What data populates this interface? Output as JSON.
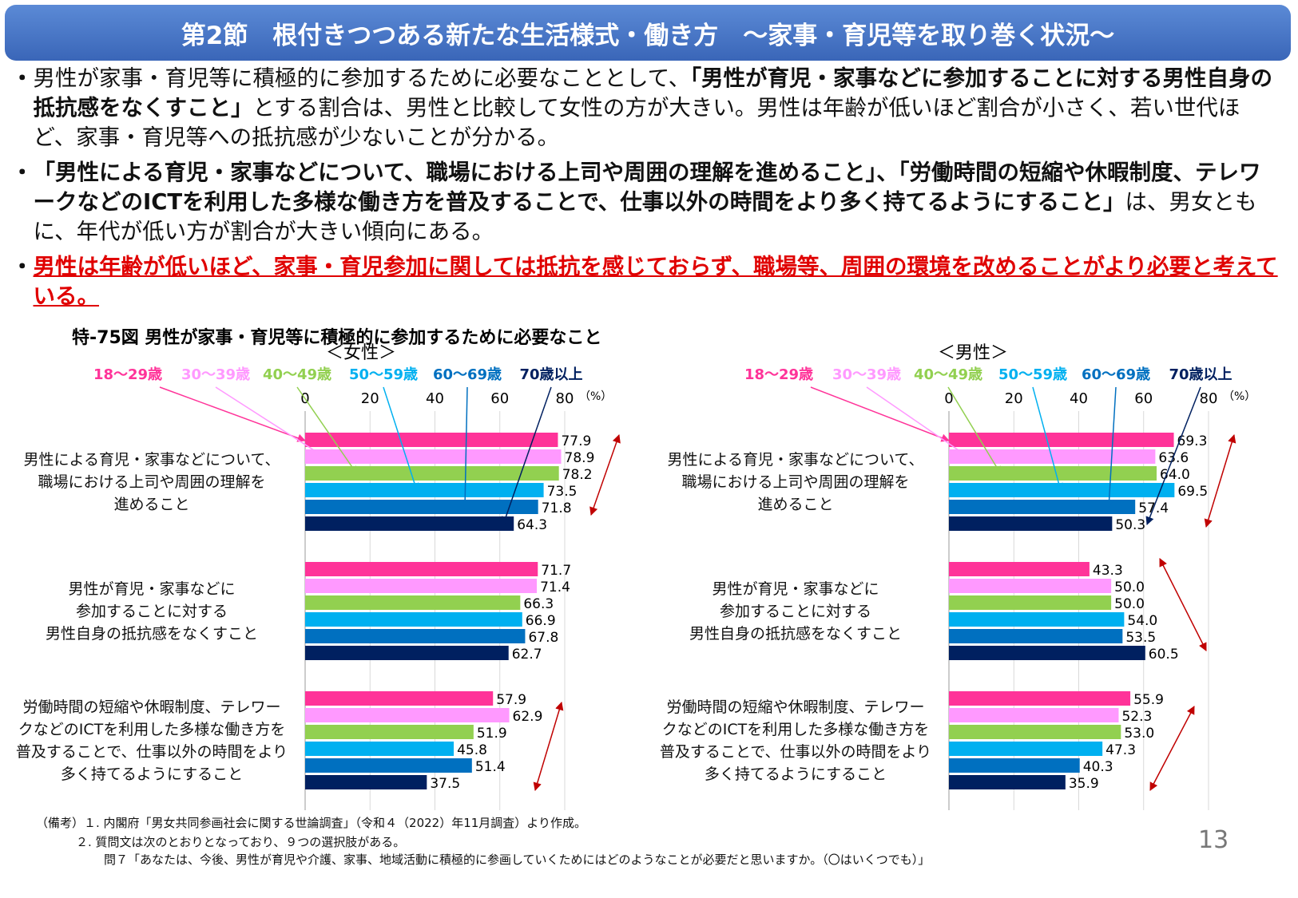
{
  "header": {
    "title": "第2節　根付きつつある新たな生活様式・働き方　～家事・育児等を取り巻く状況～"
  },
  "bullets": [
    {
      "marker": "・",
      "segments": [
        {
          "text": "男性が家事・育児等に積極的に参加するために必要なこととして、",
          "emphasis": "none"
        },
        {
          "text": "「男性が育児・家事などに参加することに対する男性自身の抵抗感をなくすこと」",
          "emphasis": "bold"
        },
        {
          "text": "とする割合は、男性と比較して女性の方が大きい。男性は年齢が低いほど割合が小さく、若い世代ほど、家事・育児等への抵抗感が少ないことが分かる。",
          "emphasis": "none"
        }
      ]
    },
    {
      "marker": "・",
      "segments": [
        {
          "text": "「男性による育児・家事などについて、職場における上司や周囲の理解を進めること」、「労働時間の短縮や休暇制度、テレワークなどのICTを利用した多様な働き方を普及することで、仕事以外の時間をより多く持てるようにすること」",
          "emphasis": "bold"
        },
        {
          "text": "は、男女ともに、年代が低い方が割合が大きい傾向にある。",
          "emphasis": "none"
        }
      ]
    },
    {
      "marker": "・",
      "segments": [
        {
          "text": "男性は年齢が低いほど、家事・育児参加に関しては抵抗を感じておらず、職場等、周囲の環境を改めることがより必要と考えている。",
          "emphasis": "red"
        }
      ]
    }
  ],
  "figure_title": "特-75図 男性が家事・育児等に積極的に参加するために必要なこと",
  "chart_data": [
    {
      "type": "bar",
      "orientation": "horizontal",
      "title": "＜女性＞",
      "unit": "（%）",
      "categories": [
        "男性による育児・家事などについて、\n職場における上司や周囲の理解を\n進めること",
        "男性が育児・家事などに\n参加することに対する\n男性自身の抵抗感をなくすこと",
        "労働時間の短縮や休暇制度、テレワー\nクなどのICTを利用した多様な働き方を\n普及することで、仕事以外の時間をより\n多く持てるようにすること"
      ],
      "series": [
        {
          "name": "18～29歳",
          "color": "#ff3399",
          "values": [
            77.9,
            71.7,
            57.9
          ],
          "value_labels": [
            "77.9",
            "71.7",
            "57.9"
          ]
        },
        {
          "name": "30～39歳",
          "color": "#ff99ff",
          "values": [
            78.9,
            71.4,
            62.9
          ],
          "value_labels": [
            "78.9",
            "71.4",
            "62.9"
          ]
        },
        {
          "name": "40～49歳",
          "color": "#92d050",
          "values": [
            78.2,
            66.3,
            51.9
          ],
          "value_labels": [
            "78.2",
            "66.3",
            "51.9"
          ]
        },
        {
          "name": "50～59歳",
          "color": "#00b0f0",
          "values": [
            73.5,
            66.9,
            45.8
          ],
          "value_labels": [
            "73.5",
            "66.9",
            "45.8"
          ]
        },
        {
          "name": "60～69歳",
          "color": "#0070c0",
          "values": [
            71.8,
            67.8,
            51.4
          ],
          "value_labels": [
            "71.8",
            "67.8",
            "51.4"
          ]
        },
        {
          "name": "70歳以上",
          "color": "#002060",
          "values": [
            64.3,
            62.7,
            37.5
          ],
          "value_labels": [
            "64.3",
            "62.7",
            "37.5"
          ]
        }
      ],
      "xlim": [
        0,
        80
      ],
      "xticks": [
        0,
        20,
        40,
        60,
        80
      ],
      "grid": true
    },
    {
      "type": "bar",
      "orientation": "horizontal",
      "title": "＜男性＞",
      "unit": "（%）",
      "categories": [
        "男性による育児・家事などについて、\n職場における上司や周囲の理解を\n進めること",
        "男性が育児・家事などに\n参加することに対する\n男性自身の抵抗感をなくすこと",
        "労働時間の短縮や休暇制度、テレワー\nクなどのICTを利用した多様な働き方を\n普及することで、仕事以外の時間をより\n多く持てるようにすること"
      ],
      "series": [
        {
          "name": "18～29歳",
          "color": "#ff3399",
          "values": [
            69.3,
            43.3,
            55.9
          ],
          "value_labels": [
            "69.3",
            "43.3",
            "55.9"
          ]
        },
        {
          "name": "30～39歳",
          "color": "#ff99ff",
          "values": [
            63.6,
            50.0,
            52.3
          ],
          "value_labels": [
            "63.6",
            "50.0",
            "52.3"
          ]
        },
        {
          "name": "40～49歳",
          "color": "#92d050",
          "values": [
            64.0,
            50.0,
            53.0
          ],
          "value_labels": [
            "64.0",
            "50.0",
            "53.0"
          ]
        },
        {
          "name": "50～59歳",
          "color": "#00b0f0",
          "values": [
            69.5,
            54.0,
            47.3
          ],
          "value_labels": [
            "69.5",
            "54.0",
            "47.3"
          ]
        },
        {
          "name": "60～69歳",
          "color": "#0070c0",
          "values": [
            57.4,
            53.5,
            40.3
          ],
          "value_labels": [
            "57.4",
            "53.5",
            "40.3"
          ]
        },
        {
          "name": "70歳以上",
          "color": "#002060",
          "values": [
            50.3,
            60.5,
            35.9
          ],
          "value_labels": [
            "50.3",
            "60.5",
            "35.9"
          ]
        }
      ],
      "xlim": [
        0,
        80
      ],
      "xticks": [
        0,
        20,
        40,
        60,
        80
      ],
      "grid": true
    }
  ],
  "notes": [
    "（備考）１. 内閣府「男女共同参画社会に関する世論調査」（令和４（2022）年11月調査）より作成。",
    "２. 質問文は次のとおりとなっており、９つの選択肢がある。",
    "問７「あなたは、今後、男性が育児や介護、家事、地域活動に積極的に参画していくためにはどのようなことが必要だと思いますか。（〇はいくつでも）」"
  ],
  "page_number": "13"
}
